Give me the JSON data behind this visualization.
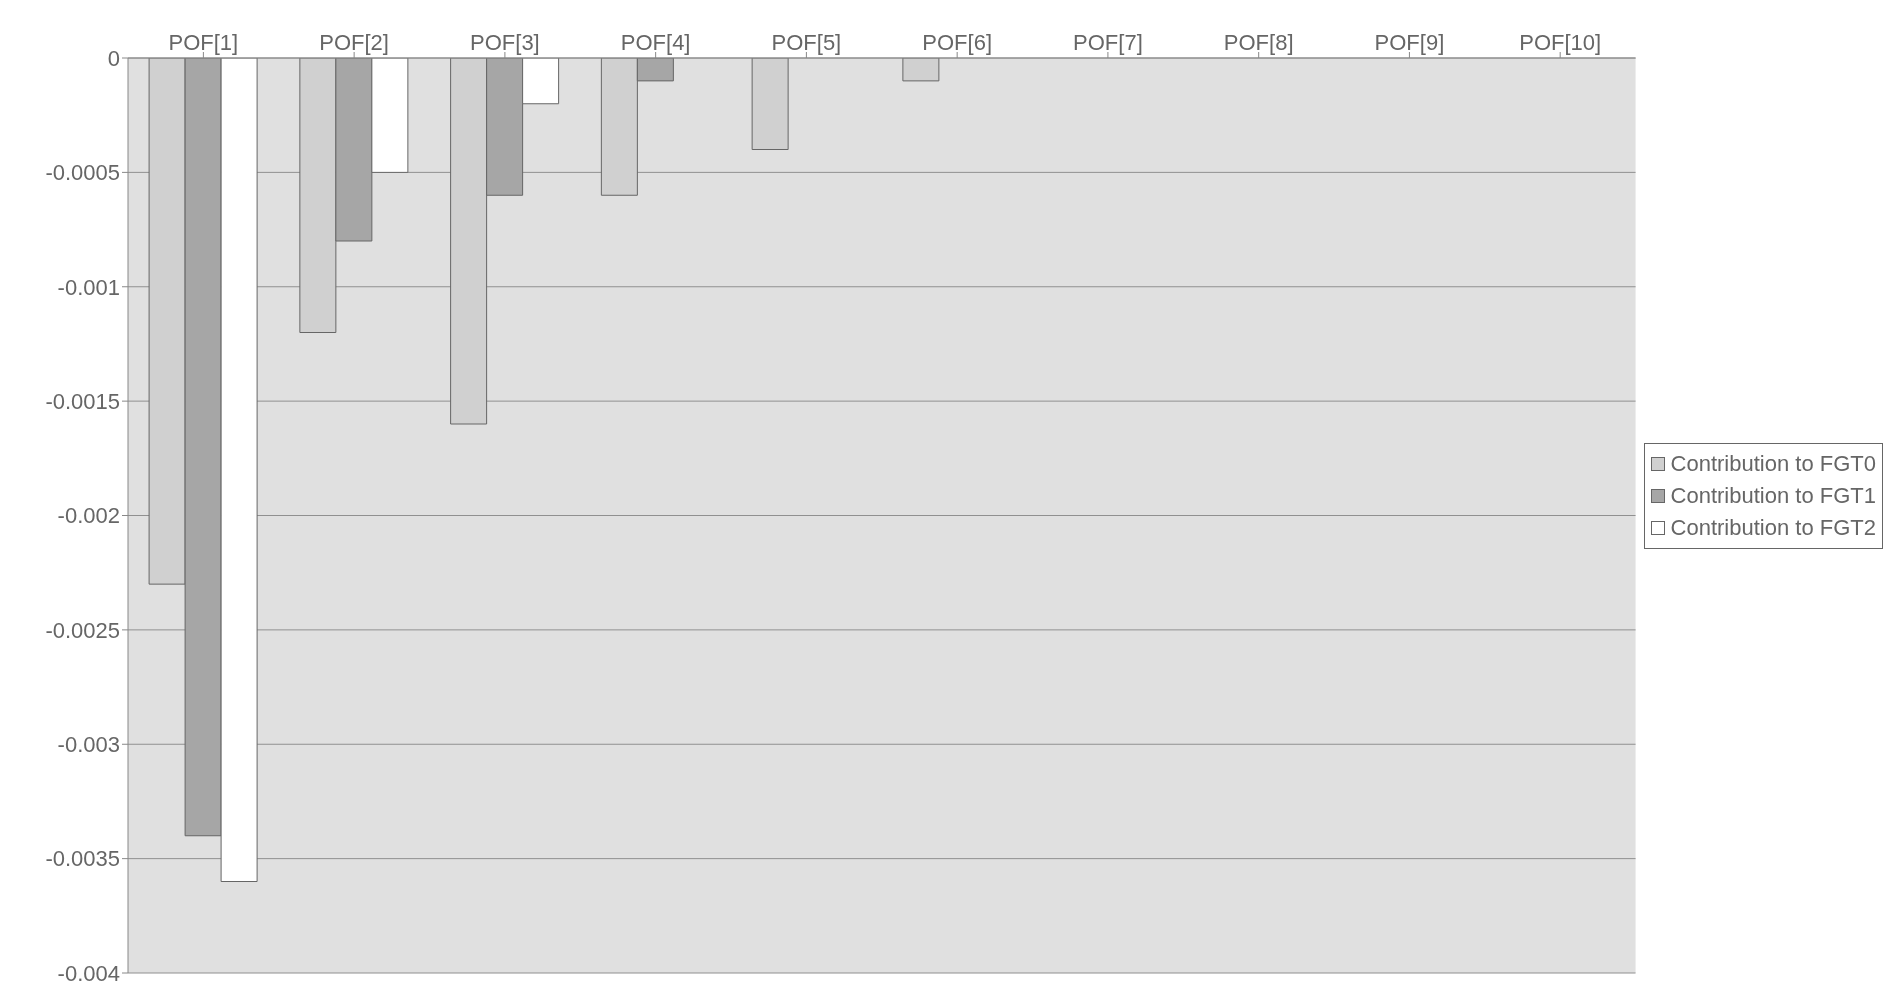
{
  "chart_data": {
    "type": "bar",
    "categories": [
      "POF[1]",
      "POF[2]",
      "POF[3]",
      "POF[4]",
      "POF[5]",
      "POF[6]",
      "POF[7]",
      "POF[8]",
      "POF[9]",
      "POF[10]"
    ],
    "series": [
      {
        "name": "Contribution to FGT0",
        "color": "#d0d0d0",
        "values": [
          -0.0023,
          -0.0012,
          -0.0016,
          -0.0006,
          -0.0004,
          -0.0001,
          0,
          0,
          0,
          0
        ]
      },
      {
        "name": "Contribution to FGT1",
        "color": "#a6a6a6",
        "values": [
          -0.0034,
          -0.0008,
          -0.0006,
          -0.0001,
          0,
          0,
          0,
          0,
          0,
          0
        ]
      },
      {
        "name": "Contribution to FGT2",
        "color": "#ffffff",
        "values": [
          -0.0036,
          -0.0005,
          -0.0002,
          0,
          0,
          0,
          0,
          0,
          0,
          0
        ]
      }
    ],
    "ylim": [
      -0.004,
      0
    ],
    "yticks": [
      0,
      -0.0005,
      -0.001,
      -0.0015,
      -0.002,
      -0.0025,
      -0.003,
      -0.0035,
      -0.004
    ],
    "grid": "y",
    "legend": "right"
  }
}
